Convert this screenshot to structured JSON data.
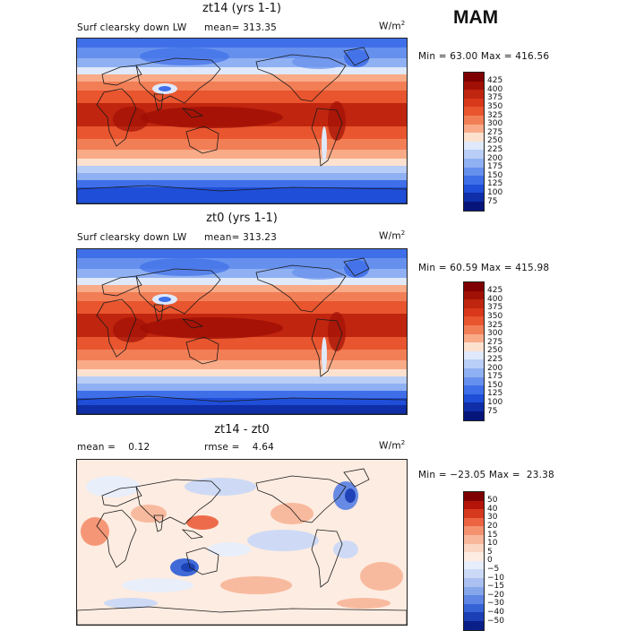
{
  "season": "MAM",
  "panels": [
    {
      "title": "zt14 (yrs 1-1)",
      "left_label": "Surf clearsky down LW",
      "mid_label": "mean= 313.35",
      "units": "W/m",
      "units_sup": "2",
      "minmax": "Min =  63.00 Max = 416.56",
      "kind": "abs",
      "legend_labels": [
        "425",
        "400",
        "375",
        "350",
        "325",
        "300",
        "275",
        "250",
        "225",
        "200",
        "175",
        "150",
        "125",
        "100",
        "75"
      ]
    },
    {
      "title": "zt0 (yrs 1-1)",
      "left_label": "Surf clearsky down LW",
      "mid_label": "mean= 313.23",
      "units": "W/m",
      "units_sup": "2",
      "minmax": "Min =  60.59 Max = 415.98",
      "kind": "abs",
      "legend_labels": [
        "425",
        "400",
        "375",
        "350",
        "325",
        "300",
        "275",
        "250",
        "225",
        "200",
        "175",
        "150",
        "125",
        "100",
        "75"
      ]
    },
    {
      "title": "zt14 - zt0",
      "left_label": "mean =    0.12",
      "mid_label": "rmse =    4.64",
      "units": "W/m",
      "units_sup": "2",
      "minmax": "Min = −23.05 Max =  23.38",
      "kind": "diff",
      "legend_labels": [
        "50",
        "40",
        "30",
        "20",
        "15",
        "10",
        "5",
        "0",
        "−5",
        "−10",
        "−15",
        "−20",
        "−30",
        "−40",
        "−50"
      ]
    }
  ],
  "colors": {
    "abs_scale": [
      "#7f0000",
      "#a11005",
      "#c0250f",
      "#d9381a",
      "#e8552e",
      "#f27e56",
      "#f9ab88",
      "#fde1cf",
      "#dfe9fb",
      "#b9cef7",
      "#8fb0f2",
      "#6690ee",
      "#3f6fe8",
      "#1f4ed8",
      "#0f2ea8",
      "#06157a"
    ],
    "diff_scale": [
      "#7f0000",
      "#b4140a",
      "#d63a1e",
      "#ec6441",
      "#f49270",
      "#f8b79b",
      "#fbd6c3",
      "#fdece1",
      "#e7eefb",
      "#cbd9f6",
      "#a9c0f1",
      "#86a6ec",
      "#5f86e4",
      "#3563d6",
      "#1b3fb4",
      "#0a1f88"
    ]
  }
}
